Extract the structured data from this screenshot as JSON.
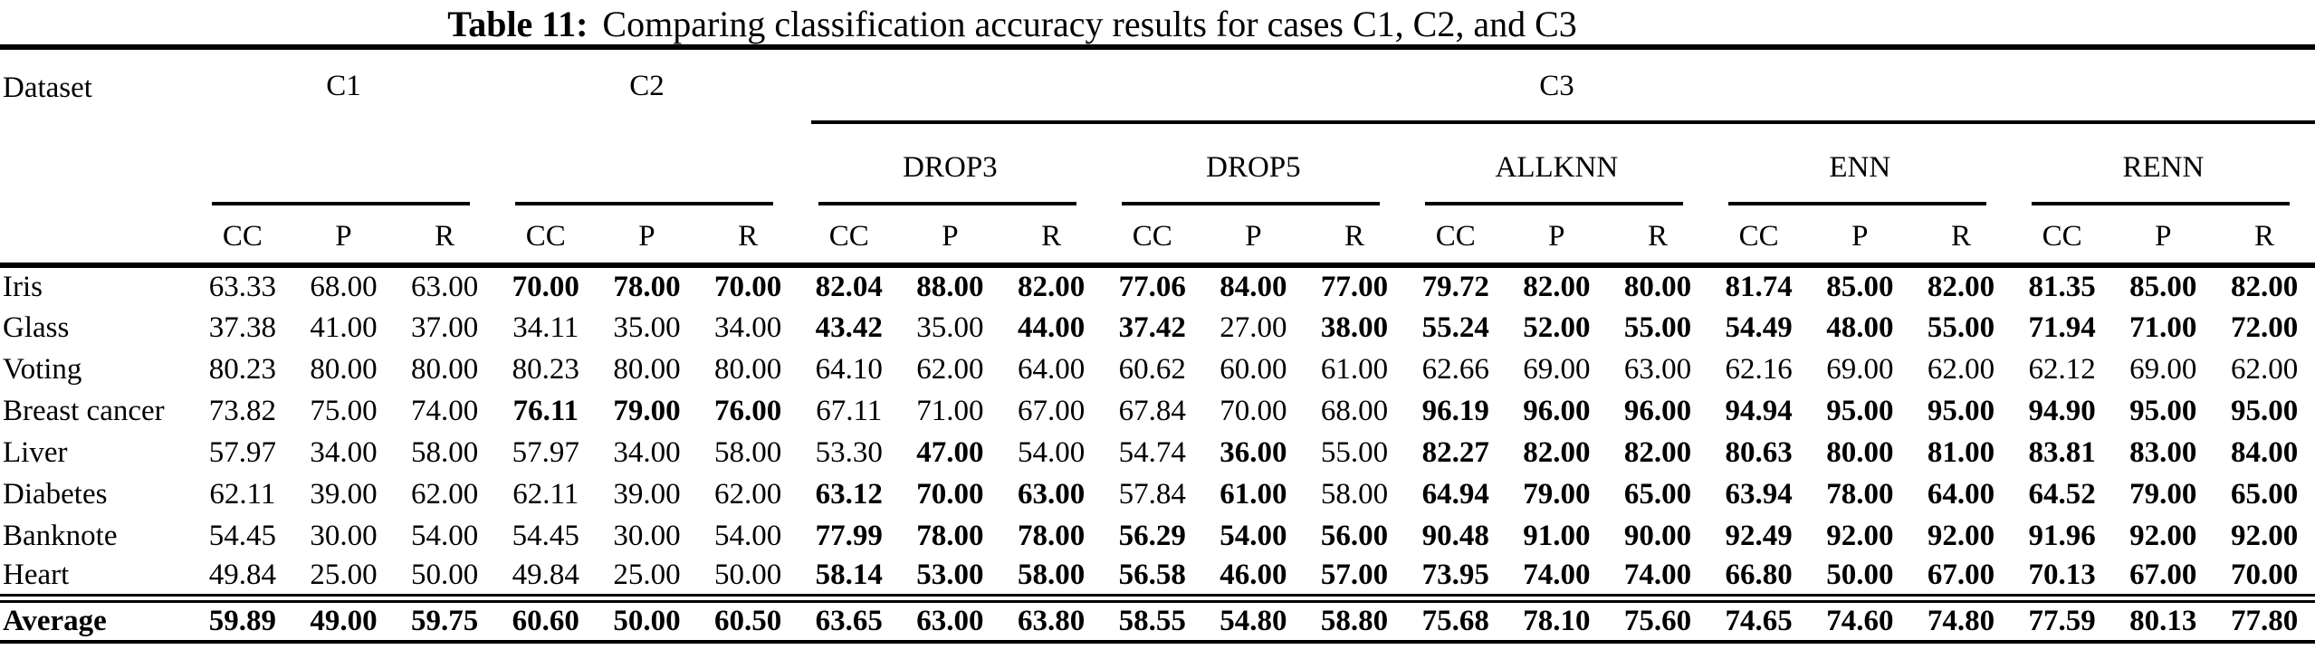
{
  "title": {
    "label": "Table 11:",
    "text": "Comparing classification accuracy results for cases C1, C2, and C3"
  },
  "table": {
    "dataset_header": "Dataset",
    "groups": [
      {
        "name": "C1"
      },
      {
        "name": "C2"
      }
    ],
    "c3": {
      "name": "C3",
      "methods": [
        "DROP3",
        "DROP5",
        "ALLKNN",
        "ENN",
        "RENN"
      ]
    },
    "metrics": [
      "CC",
      "P",
      "R"
    ],
    "rows": [
      {
        "name": "Iris",
        "values": [
          "63.33",
          "68.00",
          "63.00",
          "70.00",
          "78.00",
          "70.00",
          "82.04",
          "88.00",
          "82.00",
          "77.06",
          "84.00",
          "77.00",
          "79.72",
          "82.00",
          "80.00",
          "81.74",
          "85.00",
          "82.00",
          "81.35",
          "85.00",
          "82.00"
        ],
        "bold": [
          0,
          0,
          0,
          1,
          1,
          1,
          1,
          1,
          1,
          1,
          1,
          1,
          1,
          1,
          1,
          1,
          1,
          1,
          1,
          1,
          1
        ]
      },
      {
        "name": "Glass",
        "values": [
          "37.38",
          "41.00",
          "37.00",
          "34.11",
          "35.00",
          "34.00",
          "43.42",
          "35.00",
          "44.00",
          "37.42",
          "27.00",
          "38.00",
          "55.24",
          "52.00",
          "55.00",
          "54.49",
          "48.00",
          "55.00",
          "71.94",
          "71.00",
          "72.00"
        ],
        "bold": [
          0,
          0,
          0,
          0,
          0,
          0,
          1,
          0,
          1,
          1,
          0,
          1,
          1,
          1,
          1,
          1,
          1,
          1,
          1,
          1,
          1
        ]
      },
      {
        "name": "Voting",
        "values": [
          "80.23",
          "80.00",
          "80.00",
          "80.23",
          "80.00",
          "80.00",
          "64.10",
          "62.00",
          "64.00",
          "60.62",
          "60.00",
          "61.00",
          "62.66",
          "69.00",
          "63.00",
          "62.16",
          "69.00",
          "62.00",
          "62.12",
          "69.00",
          "62.00"
        ],
        "bold": [
          0,
          0,
          0,
          0,
          0,
          0,
          0,
          0,
          0,
          0,
          0,
          0,
          0,
          0,
          0,
          0,
          0,
          0,
          0,
          0,
          0
        ]
      },
      {
        "name": "Breast cancer",
        "values": [
          "73.82",
          "75.00",
          "74.00",
          "76.11",
          "79.00",
          "76.00",
          "67.11",
          "71.00",
          "67.00",
          "67.84",
          "70.00",
          "68.00",
          "96.19",
          "96.00",
          "96.00",
          "94.94",
          "95.00",
          "95.00",
          "94.90",
          "95.00",
          "95.00"
        ],
        "bold": [
          0,
          0,
          0,
          1,
          1,
          1,
          0,
          0,
          0,
          0,
          0,
          0,
          1,
          1,
          1,
          1,
          1,
          1,
          1,
          1,
          1
        ]
      },
      {
        "name": "Liver",
        "values": [
          "57.97",
          "34.00",
          "58.00",
          "57.97",
          "34.00",
          "58.00",
          "53.30",
          "47.00",
          "54.00",
          "54.74",
          "36.00",
          "55.00",
          "82.27",
          "82.00",
          "82.00",
          "80.63",
          "80.00",
          "81.00",
          "83.81",
          "83.00",
          "84.00"
        ],
        "bold": [
          0,
          0,
          0,
          0,
          0,
          0,
          0,
          1,
          0,
          0,
          1,
          0,
          1,
          1,
          1,
          1,
          1,
          1,
          1,
          1,
          1
        ]
      },
      {
        "name": "Diabetes",
        "values": [
          "62.11",
          "39.00",
          "62.00",
          "62.11",
          "39.00",
          "62.00",
          "63.12",
          "70.00",
          "63.00",
          "57.84",
          "61.00",
          "58.00",
          "64.94",
          "79.00",
          "65.00",
          "63.94",
          "78.00",
          "64.00",
          "64.52",
          "79.00",
          "65.00"
        ],
        "bold": [
          0,
          0,
          0,
          0,
          0,
          0,
          1,
          1,
          1,
          0,
          1,
          0,
          1,
          1,
          1,
          1,
          1,
          1,
          1,
          1,
          1
        ]
      },
      {
        "name": "Banknote",
        "values": [
          "54.45",
          "30.00",
          "54.00",
          "54.45",
          "30.00",
          "54.00",
          "77.99",
          "78.00",
          "78.00",
          "56.29",
          "54.00",
          "56.00",
          "90.48",
          "91.00",
          "90.00",
          "92.49",
          "92.00",
          "92.00",
          "91.96",
          "92.00",
          "92.00"
        ],
        "bold": [
          0,
          0,
          0,
          0,
          0,
          0,
          1,
          1,
          1,
          1,
          1,
          1,
          1,
          1,
          1,
          1,
          1,
          1,
          1,
          1,
          1
        ]
      },
      {
        "name": "Heart",
        "values": [
          "49.84",
          "25.00",
          "50.00",
          "49.84",
          "25.00",
          "50.00",
          "58.14",
          "53.00",
          "58.00",
          "56.58",
          "46.00",
          "57.00",
          "73.95",
          "74.00",
          "74.00",
          "66.80",
          "50.00",
          "67.00",
          "70.13",
          "67.00",
          "70.00"
        ],
        "bold": [
          0,
          0,
          0,
          0,
          0,
          0,
          1,
          1,
          1,
          1,
          1,
          1,
          1,
          1,
          1,
          1,
          1,
          1,
          1,
          1,
          1
        ]
      },
      {
        "name": "Average",
        "average": true,
        "values": [
          "59.89",
          "49.00",
          "59.75",
          "60.60",
          "50.00",
          "60.50",
          "63.65",
          "63.00",
          "63.80",
          "58.55",
          "54.80",
          "58.80",
          "75.68",
          "78.10",
          "75.60",
          "74.65",
          "74.60",
          "74.80",
          "77.59",
          "80.13",
          "77.80"
        ],
        "bold": [
          1,
          1,
          1,
          1,
          1,
          1,
          1,
          1,
          1,
          1,
          1,
          1,
          1,
          1,
          1,
          1,
          1,
          1,
          1,
          1,
          1
        ]
      }
    ]
  }
}
